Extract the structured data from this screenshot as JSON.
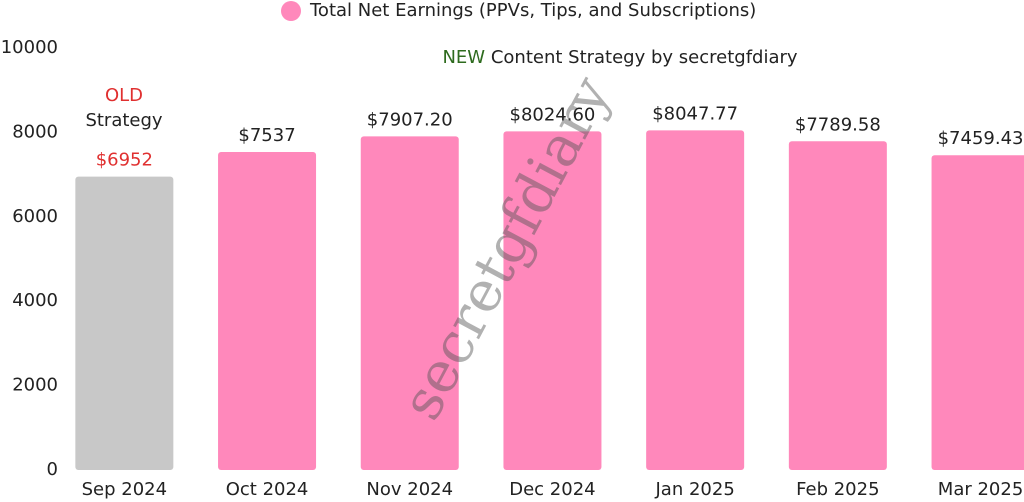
{
  "chart_data": {
    "type": "bar",
    "categories": [
      "Sep 2024",
      "Oct 2024",
      "Nov 2024",
      "Dec 2024",
      "Jan 2025",
      "Feb 2025",
      "Mar 2025"
    ],
    "series": [
      {
        "name": "Total Net Earnings (PPVs, Tips, and Subscriptions)",
        "color": "#ff88bb",
        "values": [
          6952,
          7537,
          7907.2,
          8024.6,
          8047.77,
          7789.58,
          7459.43
        ],
        "value_labels": [
          "$6952",
          "$7537",
          "$7907.20",
          "$8024.60",
          "$8047.77",
          "$7789.58",
          "$7459.43"
        ],
        "bar_colors": [
          "#c8c8c8",
          "#ff88bb",
          "#ff88bb",
          "#ff88bb",
          "#ff88bb",
          "#ff88bb",
          "#ff88bb"
        ],
        "label_colors": [
          "#e03030",
          "#222222",
          "#222222",
          "#222222",
          "#222222",
          "#222222",
          "#222222"
        ]
      }
    ],
    "ylim": [
      0,
      10000
    ],
    "yticks": [
      0,
      2000,
      4000,
      6000,
      8000,
      10000
    ],
    "grid": false,
    "annotations": [
      {
        "text": "OLD",
        "color": "#e03030"
      },
      {
        "text": "Strategy",
        "color": "#222222"
      },
      {
        "text": "NEW",
        "color": "#2e6b1e"
      },
      {
        "text": "Content Strategy by secretgfdiary",
        "color": "#222222"
      }
    ],
    "watermark": "secretgfdiary"
  }
}
